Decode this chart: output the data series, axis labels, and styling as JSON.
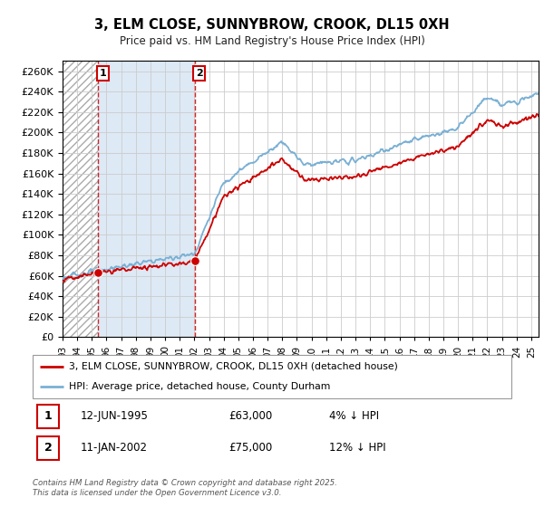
{
  "title": "3, ELM CLOSE, SUNNYBROW, CROOK, DL15 0XH",
  "subtitle": "Price paid vs. HM Land Registry's House Price Index (HPI)",
  "legend_line1": "3, ELM CLOSE, SUNNYBROW, CROOK, DL15 0XH (detached house)",
  "legend_line2": "HPI: Average price, detached house, County Durham",
  "annotation1_date": "12-JUN-1995",
  "annotation1_price": "£63,000",
  "annotation1_hpi": "4% ↓ HPI",
  "annotation2_date": "11-JAN-2002",
  "annotation2_price": "£75,000",
  "annotation2_hpi": "12% ↓ HPI",
  "footer": "Contains HM Land Registry data © Crown copyright and database right 2025.\nThis data is licensed under the Open Government Licence v3.0.",
  "sale1_x": 1995.44,
  "sale1_y": 63000,
  "sale2_x": 2002.03,
  "sale2_y": 75000,
  "red_color": "#cc0000",
  "blue_color": "#7ab0d4",
  "ylim": [
    0,
    270000
  ],
  "xlim_start": 1993.0,
  "xlim_end": 2025.5,
  "x_tick_start": 1993,
  "x_tick_end": 2025
}
